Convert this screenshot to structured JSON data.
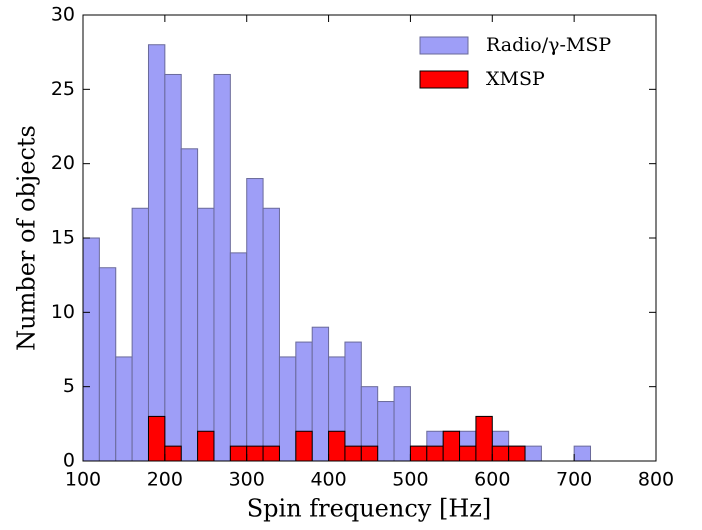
{
  "chart_data": {
    "type": "histogram",
    "xlabel": "Spin frequency [Hz]",
    "ylabel": "Number of objects",
    "bins": [
      100,
      120,
      140,
      160,
      180,
      200,
      220,
      240,
      260,
      280,
      300,
      320,
      340,
      360,
      380,
      400,
      420,
      440,
      460,
      480,
      500,
      520,
      540,
      560,
      580,
      600,
      620,
      640,
      660,
      680,
      700,
      720
    ],
    "series": [
      {
        "name": "Radio/γ-MSP",
        "color": "#9e9ef7",
        "values": [
          15,
          13,
          7,
          17,
          28,
          26,
          21,
          17,
          26,
          14,
          19,
          17,
          7,
          8,
          9,
          7,
          8,
          5,
          4,
          5,
          1,
          2,
          2,
          2,
          2,
          2,
          1,
          1,
          0,
          0,
          1
        ]
      },
      {
        "name": "XMSP",
        "color": "#ff0000",
        "values": [
          0,
          0,
          0,
          0,
          3,
          1,
          0,
          2,
          0,
          1,
          1,
          1,
          0,
          2,
          0,
          2,
          1,
          1,
          0,
          0,
          1,
          1,
          2,
          1,
          3,
          1,
          1,
          0,
          0,
          0,
          0
        ]
      }
    ],
    "xlim": [
      100,
      800
    ],
    "ylim": [
      0,
      30
    ],
    "xticks": [
      100,
      200,
      300,
      400,
      500,
      600,
      700,
      800
    ],
    "yticks": [
      0,
      5,
      10,
      15,
      20,
      25,
      30
    ],
    "legend": "upper right"
  }
}
